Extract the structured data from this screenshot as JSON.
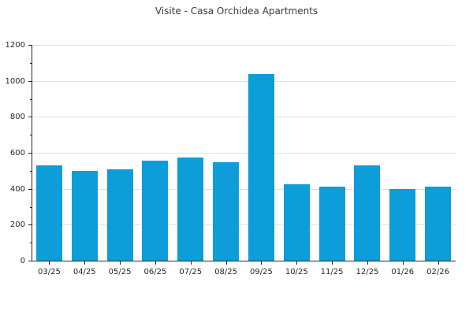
{
  "chart_data": {
    "type": "bar",
    "title": "Visite - Casa Orchidea Apartments",
    "categories": [
      "03/25",
      "04/25",
      "05/25",
      "06/25",
      "07/25",
      "08/25",
      "09/25",
      "10/25",
      "11/25",
      "12/25",
      "01/26",
      "02/26"
    ],
    "values": [
      530,
      500,
      510,
      555,
      575,
      548,
      1040,
      425,
      412,
      530,
      400,
      410
    ],
    "xlabel": "",
    "ylabel": "",
    "ylim": [
      0,
      1200
    ],
    "ytick_step": 200,
    "ytick_minor_step": 100,
    "grid": "horizontal-major-only",
    "legend": "none",
    "colors": {
      "bar": "#0d9dd9",
      "grid": "#e1e1e1",
      "axis": "#262626",
      "tick_text": "#262626",
      "title_text": "#3b3b3b",
      "background": "#ffffff"
    }
  }
}
